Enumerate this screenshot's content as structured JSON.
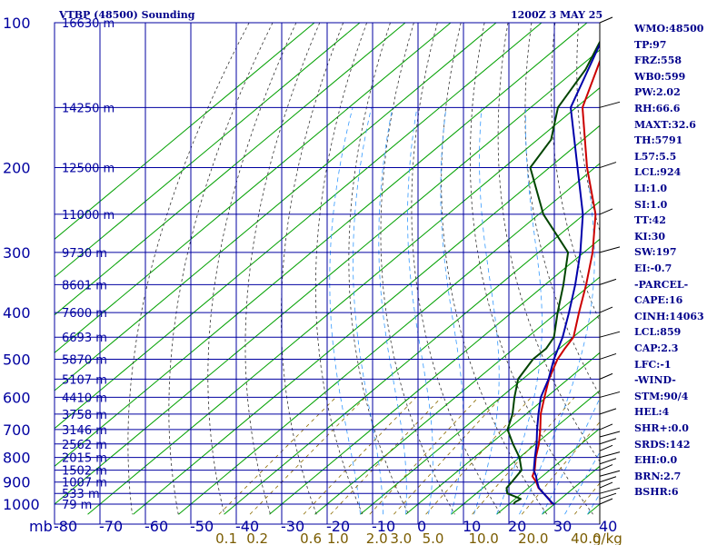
{
  "chart_data": {
    "type": "line",
    "title": "VTBP (48500) Sounding",
    "datetime": "1200Z  3 MAY 25",
    "x_unit_label": "mb",
    "y_pressure_ticks": [
      100,
      200,
      300,
      400,
      500,
      600,
      700,
      800,
      900,
      1000
    ],
    "x_temp_ticks": [
      -80,
      -70,
      -60,
      -50,
      -40,
      -30,
      -20,
      -10,
      0,
      10,
      20,
      30,
      40
    ],
    "mixing_ratio_ticks": [
      "0.1",
      "0.2",
      "0.6",
      "1.0",
      "2.0",
      "3.0",
      "5.0",
      "10.0",
      "20.0",
      "40.0"
    ],
    "mixing_ratio_unit": "g/kg",
    "heights": [
      {
        "p": 100,
        "label": "16630 m"
      },
      {
        "p": 150,
        "label": "14250 m"
      },
      {
        "p": 200,
        "label": "12500 m"
      },
      {
        "p": 250,
        "label": "11000 m"
      },
      {
        "p": 300,
        "label": "9730 m"
      },
      {
        "p": 350,
        "label": "8601 m"
      },
      {
        "p": 400,
        "label": "7600 m"
      },
      {
        "p": 450,
        "label": "6693 m"
      },
      {
        "p": 500,
        "label": "5870 m"
      },
      {
        "p": 550,
        "label": "5107 m"
      },
      {
        "p": 600,
        "label": "4410 m"
      },
      {
        "p": 650,
        "label": "3758 m"
      },
      {
        "p": 700,
        "label": "3146 m"
      },
      {
        "p": 750,
        "label": "2562 m"
      },
      {
        "p": 800,
        "label": "2015 m"
      },
      {
        "p": 850,
        "label": "1502 m"
      },
      {
        "p": 900,
        "label": "1007 m"
      },
      {
        "p": 950,
        "label": "533 m"
      },
      {
        "p": 1000,
        "label": "79 m"
      }
    ],
    "series": [
      {
        "key": "temperature",
        "color": "#cc0000",
        "points": [
          {
            "p": 1000,
            "t": 29.5
          },
          {
            "p": 975,
            "t": 27.4
          },
          {
            "p": 950,
            "t": 24.8
          },
          {
            "p": 925,
            "t": 22.2
          },
          {
            "p": 900,
            "t": 20.2
          },
          {
            "p": 875,
            "t": 17.8
          },
          {
            "p": 850,
            "t": 16.7
          },
          {
            "p": 800,
            "t": 13.6
          },
          {
            "p": 750,
            "t": 10.7
          },
          {
            "p": 700,
            "t": 7.2
          },
          {
            "p": 650,
            "t": 3.2
          },
          {
            "p": 600,
            "t": -0.4
          },
          {
            "p": 550,
            "t": -4.2
          },
          {
            "p": 500,
            "t": -7.6
          },
          {
            "p": 475,
            "t": -8.8
          },
          {
            "p": 450,
            "t": -9.9
          },
          {
            "p": 400,
            "t": -15.2
          },
          {
            "p": 350,
            "t": -21.0
          },
          {
            "p": 300,
            "t": -28.1
          },
          {
            "p": 250,
            "t": -37.5
          },
          {
            "p": 200,
            "t": -51.7
          },
          {
            "p": 150,
            "t": -68.6
          },
          {
            "p": 100,
            "t": -84.0
          }
        ]
      },
      {
        "key": "dewpoint",
        "color": "#004400",
        "points": [
          {
            "p": 1000,
            "t": 21.0
          },
          {
            "p": 990,
            "t": 20.8
          },
          {
            "p": 975,
            "t": 21.2
          },
          {
            "p": 950,
            "t": 16.8
          },
          {
            "p": 925,
            "t": 15.2
          },
          {
            "p": 900,
            "t": 14.8
          },
          {
            "p": 850,
            "t": 13.8
          },
          {
            "p": 800,
            "t": 10.0
          },
          {
            "p": 750,
            "t": 5.0
          },
          {
            "p": 700,
            "t": 0.0
          },
          {
            "p": 650,
            "t": -3.0
          },
          {
            "p": 600,
            "t": -7.0
          },
          {
            "p": 550,
            "t": -11.0
          },
          {
            "p": 500,
            "t": -13.0
          },
          {
            "p": 475,
            "t": -12.9
          },
          {
            "p": 450,
            "t": -14.2
          },
          {
            "p": 400,
            "t": -19.9
          },
          {
            "p": 350,
            "t": -26.0
          },
          {
            "p": 300,
            "t": -33.5
          },
          {
            "p": 250,
            "t": -49.0
          },
          {
            "p": 200,
            "t": -64.2
          },
          {
            "p": 175,
            "t": -67.0
          },
          {
            "p": 150,
            "t": -74.0
          },
          {
            "p": 125,
            "t": -78.0
          },
          {
            "p": 100,
            "t": -85.0
          }
        ]
      },
      {
        "key": "parcel",
        "color": "#0000aa",
        "points": [
          {
            "p": 1000,
            "t": 29.8
          },
          {
            "p": 975,
            "t": 27.3
          },
          {
            "p": 950,
            "t": 24.8
          },
          {
            "p": 925,
            "t": 22.3
          },
          {
            "p": 900,
            "t": 20.4
          },
          {
            "p": 875,
            "t": 18.6
          },
          {
            "p": 850,
            "t": 16.5
          },
          {
            "p": 800,
            "t": 13.4
          },
          {
            "p": 750,
            "t": 10.2
          },
          {
            "p": 700,
            "t": 6.5
          },
          {
            "p": 650,
            "t": 2.7
          },
          {
            "p": 600,
            "t": -1.2
          },
          {
            "p": 550,
            "t": -4.3
          },
          {
            "p": 500,
            "t": -8.4
          },
          {
            "p": 450,
            "t": -12.3
          },
          {
            "p": 400,
            "t": -17.4
          },
          {
            "p": 350,
            "t": -23.4
          },
          {
            "p": 300,
            "t": -30.8
          },
          {
            "p": 250,
            "t": -40.3
          },
          {
            "p": 200,
            "t": -53.8
          },
          {
            "p": 150,
            "t": -71.2
          },
          {
            "p": 100,
            "t": -85.0
          }
        ]
      }
    ],
    "wind_barbs_pressure": [
      1000,
      975,
      950,
      925,
      900,
      875,
      850,
      825,
      800,
      775,
      750,
      725,
      700,
      650,
      600,
      550,
      500,
      450,
      400,
      350,
      300,
      250,
      200,
      150,
      100
    ],
    "indices": [
      "WMO:48500",
      "TP:97",
      "FRZ:558",
      "WB0:599",
      "PW:2.02",
      "RH:66.6",
      "MAXT:32.6",
      "TH:5791",
      "L57:5.5",
      "LCL:924",
      "LI:1.0",
      "SI:1.0",
      "TT:42",
      "KI:30",
      "SW:197",
      "EI:-0.7",
      "-PARCEL-",
      "CAPE:16",
      "CINH:14063",
      "LCL:859",
      "CAP:2.3",
      "LFC:-1",
      "-WIND-",
      "STM:90/4",
      "HEL:4",
      "SHR+:0.0",
      "SRDS:142",
      "EHI:0.0",
      "BRN:2.7",
      "BSHR:6"
    ]
  }
}
